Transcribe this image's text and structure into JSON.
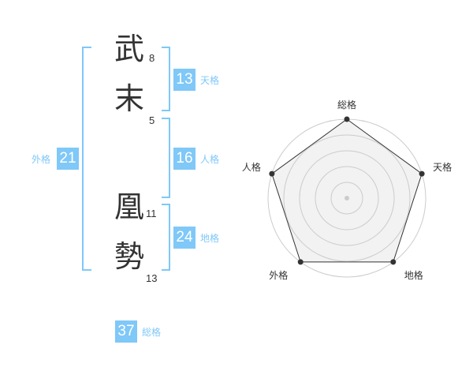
{
  "name_chars": [
    {
      "char": "武",
      "strokes": "8"
    },
    {
      "char": "末",
      "strokes": "5"
    },
    {
      "char": "凰",
      "strokes": "11"
    },
    {
      "char": "勢",
      "strokes": "13"
    }
  ],
  "fortunes": {
    "tenkaku": {
      "label": "天格",
      "value": "13"
    },
    "jinkaku": {
      "label": "人格",
      "value": "16"
    },
    "chikaku": {
      "label": "地格",
      "value": "24"
    },
    "gaikaku": {
      "label": "外格",
      "value": "21"
    },
    "soukaku": {
      "label": "総格",
      "value": "37"
    }
  },
  "chart_data": {
    "type": "radar",
    "axes": [
      "総格",
      "天格",
      "地格",
      "外格",
      "人格"
    ],
    "values": [
      5,
      5,
      5,
      5,
      5
    ],
    "max": 5,
    "rings": 5,
    "fill": "#f0f0f0",
    "stroke": "#333333",
    "accent": "#7fc8f8"
  }
}
